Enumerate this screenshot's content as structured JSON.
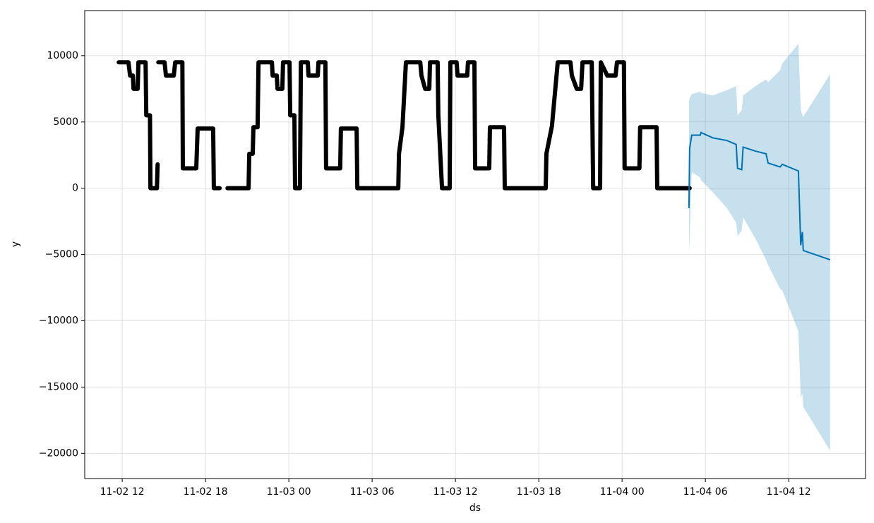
{
  "chart_data": {
    "type": "line",
    "x_label": "ds",
    "y_label": "y",
    "xlim": [
      "11-02 09:18",
      "11-04 17:32"
    ],
    "xticks": [
      {
        "value": "11-02 12:00",
        "label": "11-02 12"
      },
      {
        "value": "11-02 18:00",
        "label": "11-02 18"
      },
      {
        "value": "11-03 00:00",
        "label": "11-03 00"
      },
      {
        "value": "11-03 06:00",
        "label": "11-03 06"
      },
      {
        "value": "11-03 12:00",
        "label": "11-03 12"
      },
      {
        "value": "11-03 18:00",
        "label": "11-03 18"
      },
      {
        "value": "11-04 00:00",
        "label": "11-04 00"
      },
      {
        "value": "11-04 06:00",
        "label": "11-04 06"
      },
      {
        "value": "11-04 12:00",
        "label": "11-04 12"
      }
    ],
    "ylim": [
      -21900,
      13400
    ],
    "yticks": [
      {
        "value": -20000,
        "label": "−20000"
      },
      {
        "value": -15000,
        "label": "−15000"
      },
      {
        "value": -10000,
        "label": "−10000"
      },
      {
        "value": -5000,
        "label": "−5000"
      },
      0,
      5000,
      10000
    ],
    "grid": true,
    "observed": {
      "color": "#000000",
      "x": [
        "11-02 11:45",
        "11-02 12:27",
        "11-02 12:34",
        "11-02 12:46",
        "11-02 12:49",
        "11-02 13:07",
        "11-02 13:10",
        "11-02 13:41",
        "11-02 13:44",
        "11-02 14:00",
        "11-02 14:02",
        "11-02 14:30",
        "11-02 14:33",
        null,
        "11-02 14:36",
        "11-02 15:03",
        "11-02 15:09",
        "11-02 15:43",
        "11-02 15:49",
        "11-02 16:20",
        "11-02 16:22",
        "11-02 17:20",
        "11-02 17:26",
        "11-02 18:33",
        "11-02 18:36",
        "11-02 19:01",
        null,
        "11-02 19:35",
        "11-02 21:06",
        "11-02 21:09",
        "11-02 21:24",
        "11-02 21:27",
        "11-02 21:45",
        "11-02 21:49",
        "11-02 22:47",
        "11-02 22:50",
        "11-02 23:08",
        "11-02 23:11",
        "11-02 23:32",
        "11-02 23:35",
        "11-03 00:03",
        "11-03 00:06",
        "11-03 00:24",
        "11-03 00:27",
        "11-03 00:48",
        "11-03 00:52",
        "11-03 01:22",
        "11-03 01:25",
        "11-03 02:05",
        "11-03 02:08",
        "11-03 02:38",
        "11-03 02:41",
        "11-03 03:42",
        "11-03 03:45",
        "11-03 04:53",
        "11-03 04:56",
        "11-03 07:53",
        "11-03 07:56",
        "11-03 08:11",
        "11-03 08:26",
        "11-03 09:28",
        "11-03 09:33",
        "11-03 09:49",
        "11-03 10:07",
        "11-03 10:10",
        "11-03 10:43",
        "11-03 10:46",
        "11-03 11:02",
        "11-03 11:35",
        "11-03 11:38",
        "11-03 12:05",
        "11-03 12:09",
        "11-03 12:51",
        "11-03 12:54",
        "11-03 13:22",
        "11-03 13:25",
        "11-03 14:26",
        "11-03 14:29",
        "11-03 15:30",
        "11-03 15:33",
        "11-03 18:30",
        "11-03 18:33",
        "11-03 18:57",
        "11-03 19:22",
        "11-03 20:17",
        "11-03 20:23",
        "11-03 20:44",
        "11-03 21:03",
        "11-03 21:09",
        "11-03 21:49",
        "11-03 21:55",
        "11-03 22:25",
        "11-03 22:28",
        "11-03 22:56",
        "11-03 23:32",
        "11-03 23:38",
        "11-04 00:08",
        "11-04 00:11",
        "11-04 01:15",
        "11-04 01:18",
        "11-04 02:29",
        "11-04 02:32",
        "11-04 04:52"
      ],
      "values": [
        9500,
        9500,
        8500,
        8500,
        7500,
        7500,
        9500,
        9500,
        5500,
        5500,
        0,
        0,
        1800,
        null,
        9500,
        9500,
        8500,
        8500,
        9500,
        9500,
        1500,
        1500,
        4500,
        4500,
        0,
        0,
        null,
        0,
        0,
        2600,
        2600,
        4600,
        4600,
        9500,
        9500,
        8500,
        8500,
        7500,
        7500,
        9500,
        9500,
        5500,
        5500,
        0,
        0,
        9500,
        9500,
        8500,
        8500,
        9500,
        9500,
        1500,
        1500,
        4500,
        4500,
        0,
        0,
        2600,
        4600,
        9500,
        9500,
        8500,
        7500,
        7500,
        9500,
        9500,
        5500,
        0,
        0,
        9500,
        9500,
        8500,
        8500,
        9500,
        9500,
        1500,
        1500,
        4600,
        4600,
        0,
        0,
        2600,
        4700,
        9500,
        9500,
        8500,
        7500,
        7500,
        9500,
        9500,
        0,
        0,
        9500,
        8500,
        8500,
        9500,
        9500,
        1500,
        1500,
        4600,
        4600,
        0,
        0
      ]
    },
    "forecast": {
      "color": "#0072b2",
      "band_color": "#0072b2",
      "x": [
        "11-04 04:49",
        "11-04 04:52",
        "11-04 05:01",
        "11-04 05:38",
        "11-04 05:41",
        "11-04 06:32",
        "11-04 07:33",
        "11-04 08:13",
        "11-04 08:19",
        "11-04 08:37",
        "11-04 08:43",
        "11-04 09:36",
        "11-04 10:22",
        "11-04 10:31",
        "11-04 11:23",
        "11-04 11:32",
        "11-04 12:42",
        "11-04 12:52",
        "11-04 12:59",
        "11-04 13:03",
        "11-04 14:59"
      ],
      "values": [
        -1500,
        3000,
        4000,
        4000,
        4200,
        3800,
        3600,
        3300,
        1500,
        1400,
        3100,
        2800,
        2600,
        1900,
        1600,
        1800,
        1300,
        -4300,
        -3300,
        -4700,
        -5400
      ],
      "lower": [
        -4900,
        -3800,
        1200,
        800,
        600,
        -300,
        -1500,
        -2600,
        -3600,
        -3200,
        -2200,
        -3800,
        -5400,
        -5800,
        -7600,
        -7700,
        -10800,
        -15800,
        -15500,
        -16500,
        -19800
      ],
      "upper": [
        6500,
        6800,
        7100,
        7300,
        7200,
        7000,
        7400,
        7700,
        5500,
        5900,
        7000,
        7700,
        8200,
        8000,
        8900,
        9400,
        10900,
        6000,
        5500,
        5400,
        8600
      ]
    }
  }
}
